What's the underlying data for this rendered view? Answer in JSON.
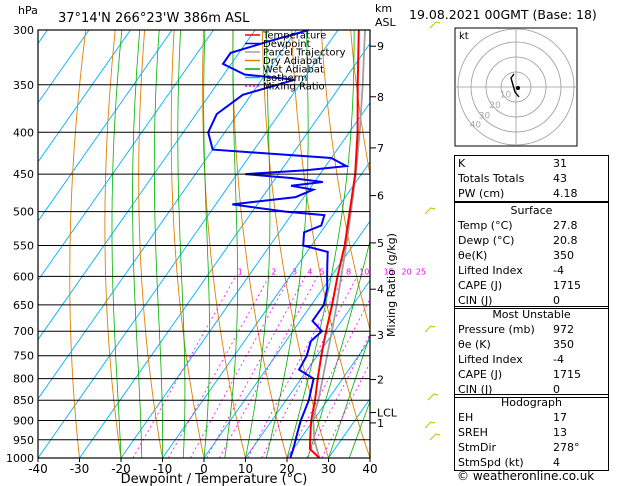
{
  "header": {
    "location": "37°14'N  266°23'W  386m  ASL",
    "datetime": "19.08.2021  00GMT  (Base: 18)",
    "hpa_label": "hPa",
    "km_label": "km",
    "asl_label": "ASL"
  },
  "chart_data": {
    "type": "line",
    "subtype": "skew-T log-P sounding",
    "xlabel": "Dewpoint / Temperature (°C)",
    "ylabel": "hPa",
    "right_axis_label": "Mixing Ratio (g/kg)",
    "xlim": [
      -40,
      40
    ],
    "ylim": [
      1000,
      300
    ],
    "x_ticks": [
      -40,
      -30,
      -20,
      -10,
      0,
      10,
      20,
      30,
      40
    ],
    "pressure_ticks": [
      300,
      350,
      400,
      450,
      500,
      550,
      600,
      650,
      700,
      750,
      800,
      850,
      900,
      950,
      1000
    ],
    "km_ticks": [
      {
        "label": "9",
        "p": 314
      },
      {
        "label": "8",
        "p": 362
      },
      {
        "label": "7",
        "p": 418
      },
      {
        "label": "6",
        "p": 478
      },
      {
        "label": "5",
        "p": 546
      },
      {
        "label": "4",
        "p": 622
      },
      {
        "label": "3",
        "p": 708
      },
      {
        "label": "2",
        "p": 802
      },
      {
        "label": "LCL",
        "p": 880
      },
      {
        "label": "1",
        "p": 906
      }
    ],
    "mixing_ratio_labels": [
      "1",
      "2",
      "3",
      "4",
      "5",
      "8",
      "10",
      "15",
      "20",
      "25"
    ],
    "mixing_ratio_values": [
      1,
      2,
      3,
      4,
      5,
      8,
      10,
      15,
      20,
      25
    ],
    "legend": [
      "Temperature",
      "Dewpoint",
      "Parcel Trajectory",
      "Dry Adiabat",
      "Wet Adiabat",
      "Isotherm",
      "Mixing Ratio"
    ],
    "series": [
      {
        "name": "Temperature",
        "color": "#ff0000",
        "points": [
          [
            1000,
            27.8
          ],
          [
            975,
            24
          ],
          [
            950,
            22.5
          ],
          [
            925,
            21
          ],
          [
            900,
            19.5
          ],
          [
            850,
            17
          ],
          [
            800,
            14
          ],
          [
            750,
            11
          ],
          [
            700,
            8
          ],
          [
            650,
            5
          ],
          [
            600,
            1.5
          ],
          [
            550,
            -2
          ],
          [
            500,
            -6.5
          ],
          [
            450,
            -11.5
          ],
          [
            400,
            -18
          ],
          [
            350,
            -26
          ],
          [
            300,
            -35
          ]
        ]
      },
      {
        "name": "Dewpoint",
        "color": "#0000ff",
        "points": [
          [
            1000,
            20.8
          ],
          [
            975,
            20
          ],
          [
            950,
            19
          ],
          [
            925,
            18
          ],
          [
            900,
            17
          ],
          [
            850,
            15.5
          ],
          [
            800,
            13
          ],
          [
            780,
            8
          ],
          [
            750,
            7.5
          ],
          [
            720,
            6
          ],
          [
            700,
            7
          ],
          [
            680,
            3
          ],
          [
            650,
            3
          ],
          [
            620,
            1
          ],
          [
            600,
            -1
          ],
          [
            580,
            -3
          ],
          [
            560,
            -5
          ],
          [
            550,
            -12
          ],
          [
            530,
            -14
          ],
          [
            520,
            -11
          ],
          [
            505,
            -12
          ],
          [
            500,
            -22
          ],
          [
            490,
            -36
          ],
          [
            480,
            -22
          ],
          [
            470,
            -19
          ],
          [
            465,
            -25
          ],
          [
            460,
            -18
          ],
          [
            455,
            -26
          ],
          [
            450,
            -38
          ],
          [
            445,
            -24
          ],
          [
            440,
            -15
          ],
          [
            430,
            -20
          ],
          [
            420,
            -50
          ],
          [
            400,
            -54
          ],
          [
            380,
            -55
          ],
          [
            360,
            -52
          ],
          [
            345,
            -42
          ],
          [
            340,
            -55
          ],
          [
            330,
            -62
          ],
          [
            320,
            -62
          ],
          [
            310,
            -55
          ],
          [
            300,
            -47
          ]
        ]
      },
      {
        "name": "Parcel Trajectory",
        "color": "#a0a0a0",
        "points": [
          [
            1000,
            27.8
          ],
          [
            950,
            23.5
          ],
          [
            900,
            20
          ],
          [
            880,
            19
          ],
          [
            850,
            17.8
          ],
          [
            800,
            15.2
          ],
          [
            750,
            12.4
          ],
          [
            700,
            9.4
          ],
          [
            650,
            6.1
          ],
          [
            600,
            2.4
          ],
          [
            550,
            -1.6
          ],
          [
            500,
            -6.2
          ],
          [
            450,
            -11.4
          ],
          [
            400,
            -17.5
          ],
          [
            350,
            -24.8
          ],
          [
            300,
            -33.5
          ]
        ]
      }
    ],
    "hodograph": {
      "label": "kt",
      "ring_labels": [
        "10",
        "20",
        "30",
        "40"
      ]
    },
    "colors": {
      "temperature": "#ff0000",
      "dewpoint": "#0000ff",
      "parcel": "#a0a0a0",
      "dry_adiabat": "#e08000",
      "wet_adiabat": "#00b000",
      "isotherm": "#00b0ff",
      "mixing_ratio": "#ff00ff"
    }
  },
  "indices": {
    "k_label": "K",
    "k_value": "31",
    "tt_label": "Totals Totals",
    "tt_value": "43",
    "pw_label": "PW (cm)",
    "pw_value": "4.18"
  },
  "surface": {
    "title": "Surface",
    "temp_label": "Temp (°C)",
    "temp_value": "27.8",
    "dewp_label": "Dewp (°C)",
    "dewp_value": "20.8",
    "theta_label": "θe(K)",
    "theta_value": "350",
    "li_label": "Lifted Index",
    "li_value": "-4",
    "cape_label": "CAPE (J)",
    "cape_value": "1715",
    "cin_label": "CIN (J)",
    "cin_value": "0"
  },
  "most_unstable": {
    "title": "Most Unstable",
    "pressure_label": "Pressure (mb)",
    "pressure_value": "972",
    "theta_label": "θe (K)",
    "theta_value": "350",
    "li_label": "Lifted Index",
    "li_value": "-4",
    "cape_label": "CAPE (J)",
    "cape_value": "1715",
    "cin_label": "CIN (J)",
    "cin_value": "0"
  },
  "hodograph_table": {
    "title": "Hodograph",
    "eh_label": "EH",
    "eh_value": "17",
    "srh_label": "SREH",
    "srh_value": "13",
    "dir_label": "StmDir",
    "dir_value": "278°",
    "spd_label": "StmSpd (kt)",
    "spd_value": "4"
  },
  "credit": "© weatheronline.co.uk"
}
